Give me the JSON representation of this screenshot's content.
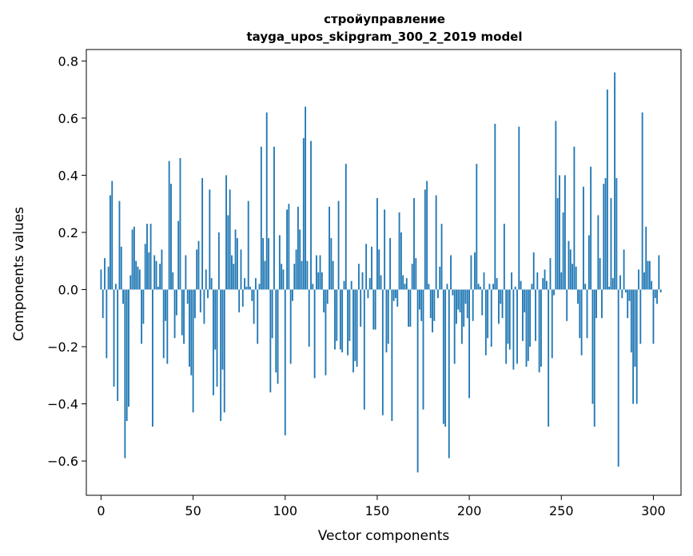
{
  "chart_data": {
    "type": "bar",
    "title": "стройуправление",
    "subtitle": "tayga_upos_skipgram_300_2_2019 model",
    "xlabel": "Vector components",
    "ylabel": "Components values",
    "xlim": [
      -8,
      315
    ],
    "ylim": [
      -0.72,
      0.84
    ],
    "xticks": [
      0,
      50,
      100,
      150,
      200,
      250,
      300
    ],
    "xtick_labels": [
      "0",
      "50",
      "100",
      "150",
      "200",
      "250",
      "300"
    ],
    "yticks": [
      -0.6,
      -0.4,
      -0.2,
      0.0,
      0.2,
      0.4,
      0.6,
      0.8
    ],
    "ytick_labels": [
      "−0.6",
      "−0.4",
      "−0.2",
      "0.0",
      "0.2",
      "0.4",
      "0.6",
      "0.8"
    ],
    "grid": false,
    "bar_color": "#1f77b4",
    "series": [
      {
        "values": [
          0.07,
          -0.1,
          0.11,
          -0.24,
          0.08,
          0.33,
          0.38,
          -0.34,
          0.02,
          -0.39,
          0.31,
          0.15,
          -0.05,
          -0.59,
          -0.46,
          -0.41,
          0.05,
          0.21,
          0.22,
          0.1,
          0.08,
          0.07,
          -0.19,
          -0.12,
          0.16,
          0.23,
          0.13,
          0.23,
          -0.48,
          0.12,
          0.1,
          0.01,
          0.09,
          0.14,
          -0.24,
          -0.11,
          -0.26,
          0.45,
          0.37,
          0.06,
          -0.17,
          -0.09,
          0.24,
          0.46,
          -0.16,
          -0.19,
          0.12,
          -0.05,
          -0.27,
          -0.3,
          -0.43,
          -0.1,
          0.14,
          0.17,
          -0.08,
          0.39,
          -0.12,
          0.07,
          -0.03,
          0.35,
          0.04,
          -0.37,
          -0.21,
          -0.34,
          0.2,
          -0.46,
          -0.28,
          -0.43,
          0.4,
          0.26,
          0.35,
          0.12,
          0.09,
          0.21,
          0.18,
          -0.08,
          0.14,
          -0.06,
          0.04,
          0.01,
          0.31,
          0.01,
          -0.04,
          -0.12,
          0.04,
          -0.19,
          0.02,
          0.5,
          0.18,
          0.1,
          0.62,
          0.18,
          -0.36,
          -0.17,
          0.5,
          -0.29,
          -0.33,
          0.19,
          0.09,
          0.07,
          -0.51,
          0.28,
          0.3,
          -0.26,
          -0.04,
          0.09,
          0.14,
          0.29,
          0.21,
          0.1,
          0.53,
          0.64,
          0.1,
          -0.2,
          0.52,
          0.02,
          -0.31,
          0.12,
          0.06,
          0.12,
          0.06,
          -0.08,
          -0.3,
          -0.05,
          0.29,
          0.18,
          0.1,
          -0.21,
          -0.18,
          0.31,
          -0.21,
          -0.22,
          0.03,
          0.44,
          -0.23,
          -0.18,
          0.03,
          -0.29,
          -0.25,
          -0.27,
          0.09,
          -0.13,
          0.06,
          -0.42,
          0.16,
          -0.03,
          0.04,
          0.15,
          -0.14,
          -0.14,
          0.32,
          0.14,
          0.05,
          -0.44,
          0.28,
          -0.22,
          -0.19,
          0.18,
          -0.46,
          -0.04,
          -0.03,
          -0.06,
          0.27,
          0.2,
          0.05,
          0.02,
          0.04,
          -0.13,
          -0.13,
          0.09,
          0.32,
          0.11,
          -0.64,
          -0.07,
          -0.11,
          -0.42,
          0.35,
          0.38,
          0.02,
          -0.1,
          -0.15,
          -0.11,
          0.33,
          -0.03,
          0.08,
          0.23,
          -0.47,
          -0.48,
          0.02,
          -0.59,
          0.12,
          -0.02,
          -0.26,
          -0.12,
          -0.07,
          -0.08,
          -0.19,
          -0.13,
          -0.05,
          -0.1,
          -0.38,
          0.12,
          -0.11,
          0.13,
          0.44,
          0.02,
          0.01,
          -0.09,
          0.06,
          -0.23,
          -0.17,
          0.02,
          -0.2,
          0.02,
          0.58,
          0.04,
          -0.12,
          -0.05,
          -0.1,
          0.23,
          -0.26,
          -0.19,
          -0.21,
          0.06,
          -0.28,
          0.01,
          -0.26,
          0.57,
          0.03,
          -0.18,
          -0.08,
          -0.27,
          -0.25,
          -0.2,
          0.02,
          0.13,
          -0.18,
          0.06,
          -0.29,
          -0.27,
          0.04,
          0.07,
          0.03,
          -0.48,
          0.11,
          -0.24,
          -0.02,
          0.59,
          0.32,
          0.4,
          0.06,
          0.27,
          0.4,
          -0.11,
          0.17,
          0.14,
          0.09,
          0.5,
          0.08,
          -0.05,
          -0.17,
          -0.23,
          0.36,
          0.02,
          -0.17,
          0.19,
          0.43,
          -0.4,
          -0.48,
          -0.1,
          0.26,
          0.11,
          -0.1,
          0.37,
          0.39,
          0.7,
          0.01,
          0.32,
          0.04,
          0.76,
          0.39,
          -0.62,
          0.05,
          -0.03,
          0.14,
          -0.01,
          -0.1,
          -0.04,
          -0.22,
          -0.4,
          -0.27,
          -0.4,
          0.07,
          -0.19,
          0.62,
          0.06,
          0.22,
          0.1,
          0.1,
          0.03,
          -0.19,
          -0.03,
          -0.05,
          0.12,
          -0.01
        ]
      }
    ]
  }
}
